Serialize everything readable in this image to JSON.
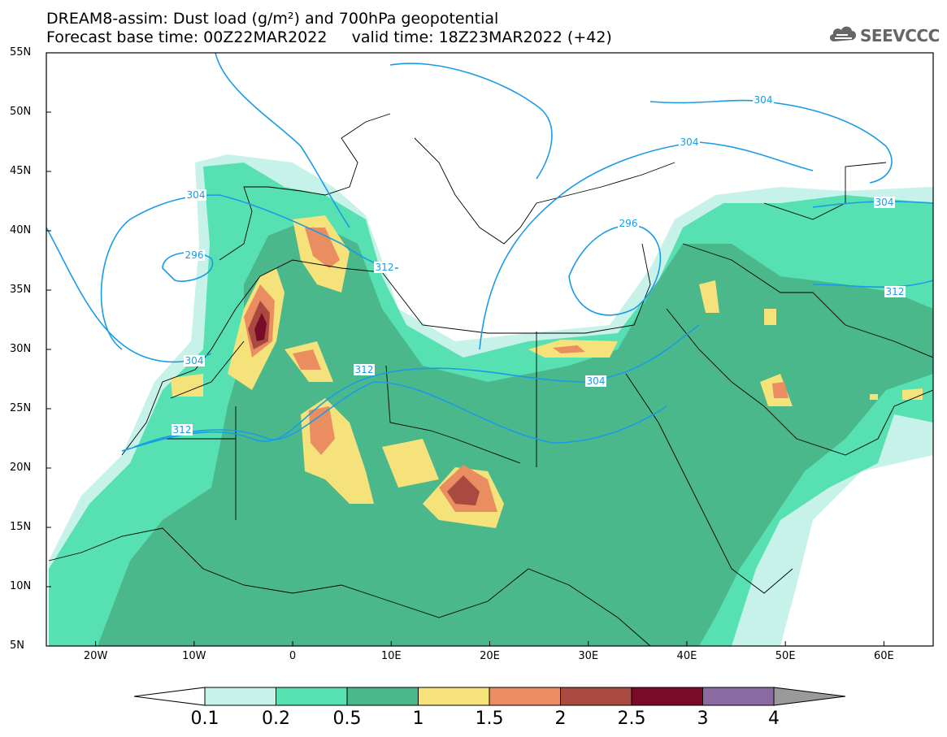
{
  "title": {
    "line1": "DREAM8-assim: Dust load (g/m²) and 700hPa geopotential",
    "line2_base": "Forecast base time: 00Z22MAR2022",
    "line2_valid": "valid time: 18Z23MAR2022 (+42)"
  },
  "logo": {
    "text": "SEEVCCC",
    "icon": "cloud-icon"
  },
  "map": {
    "extent": {
      "lon": [
        -25,
        65
      ],
      "lat": [
        5,
        55
      ]
    },
    "lat_ticks": [
      "55N",
      "50N",
      "45N",
      "40N",
      "35N",
      "30N",
      "25N",
      "20N",
      "15N",
      "10N",
      "5N"
    ],
    "lon_ticks": [
      "20W",
      "10W",
      "0",
      "10E",
      "20E",
      "30E",
      "40E",
      "50E",
      "60E"
    ],
    "contour_labels": [
      "304",
      "296",
      "312",
      "304",
      "312",
      "304",
      "312",
      "296",
      "304",
      "304",
      "312",
      "304"
    ]
  },
  "colorbar": {
    "labels": [
      "0.1",
      "0.2",
      "0.5",
      "1",
      "1.5",
      "2",
      "2.5",
      "3",
      "4"
    ],
    "colors": [
      "#c6f2e9",
      "#57e0b2",
      "#4bb88c",
      "#f5e27a",
      "#ea8d61",
      "#a94a40",
      "#7a0a2a",
      "#8a6aa1",
      "#9a9a9a"
    ]
  }
}
